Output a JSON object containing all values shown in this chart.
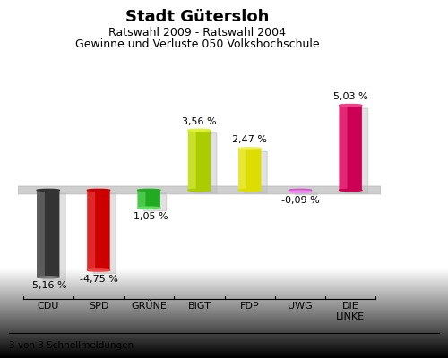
{
  "title": "Stadt Gütersloh",
  "subtitle1": "Ratswahl 2009 - Ratswahl 2004",
  "subtitle2": "Gewinne und Verluste 050 Volkshochschule",
  "footer": "3 von 3 Schnellmeldungen",
  "categories": [
    "CDU",
    "SPD",
    "GRÜNE",
    "BIGT",
    "FDP",
    "UWG",
    "DIE\nLINKE"
  ],
  "values": [
    -5.16,
    -4.75,
    -1.05,
    3.56,
    2.47,
    -0.09,
    5.03
  ],
  "labels": [
    "-5,16 %",
    "-4,75 %",
    "-1,05 %",
    "3,56 %",
    "2,47 %",
    "-0,09 %",
    "5,03 %"
  ],
  "bar_colors": [
    "#333333",
    "#cc0000",
    "#22aa22",
    "#aacc00",
    "#dddd00",
    "#cc55cc",
    "#cc0055"
  ],
  "bar_colors_light": [
    "#777777",
    "#ee4444",
    "#66dd66",
    "#ddee44",
    "#eeee55",
    "#ee88ee",
    "#ee4488"
  ],
  "background_color_top": "#d0d0d0",
  "background_color_bottom": "#f5f5f5",
  "title_fontsize": 13,
  "subtitle_fontsize": 9,
  "label_fontsize": 8,
  "cat_fontsize": 8,
  "ylim": [
    -7.5,
    7.5
  ],
  "bar_width": 0.45
}
